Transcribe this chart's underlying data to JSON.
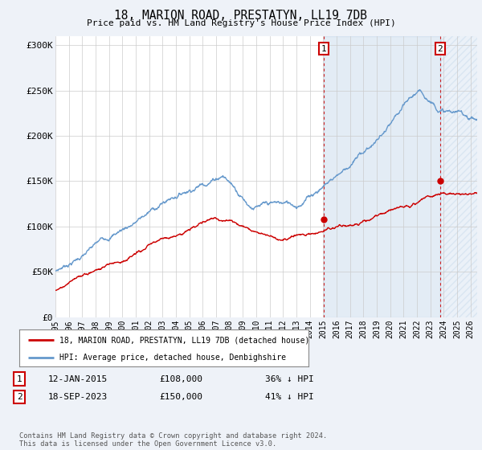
{
  "title": "18, MARION ROAD, PRESTATYN, LL19 7DB",
  "subtitle": "Price paid vs. HM Land Registry's House Price Index (HPI)",
  "xlim_start": 1995.0,
  "xlim_end": 2026.5,
  "ylim": [
    0,
    310000
  ],
  "yticks": [
    0,
    50000,
    100000,
    150000,
    200000,
    250000,
    300000
  ],
  "ytick_labels": [
    "£0",
    "£50K",
    "£100K",
    "£150K",
    "£200K",
    "£250K",
    "£300K"
  ],
  "xticks": [
    1995,
    1996,
    1997,
    1998,
    1999,
    2000,
    2001,
    2002,
    2003,
    2004,
    2005,
    2006,
    2007,
    2008,
    2009,
    2010,
    2011,
    2012,
    2013,
    2014,
    2015,
    2016,
    2017,
    2018,
    2019,
    2020,
    2021,
    2022,
    2023,
    2024,
    2025,
    2026
  ],
  "hpi_color": "#6699cc",
  "sale_color": "#cc0000",
  "sale1_x": 2015.04,
  "sale1_y": 108000,
  "sale2_x": 2023.72,
  "sale2_y": 150000,
  "legend_sale": "18, MARION ROAD, PRESTATYN, LL19 7DB (detached house)",
  "legend_hpi": "HPI: Average price, detached house, Denbighshire",
  "ann1_date": "12-JAN-2015",
  "ann1_price": "£108,000",
  "ann1_note": "36% ↓ HPI",
  "ann2_date": "18-SEP-2023",
  "ann2_price": "£150,000",
  "ann2_note": "41% ↓ HPI",
  "footer": "Contains HM Land Registry data © Crown copyright and database right 2024.\nThis data is licensed under the Open Government Licence v3.0.",
  "bg_color": "#eef2f8",
  "plot_bg": "#ffffff",
  "shade_color": "#dce8f5"
}
